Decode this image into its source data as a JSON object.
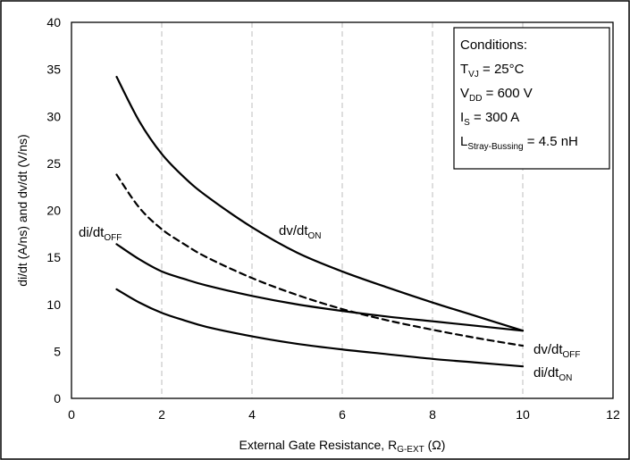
{
  "chart_data": {
    "type": "line",
    "xlabel": {
      "main": "External Gate Resistance, R",
      "sub": "G-EXT",
      "unit": " (Ω)"
    },
    "ylabel": "di/dt (A/ns) and dv/dt (V/ns)",
    "xlim": [
      0,
      12
    ],
    "ylim": [
      0,
      40
    ],
    "xticks": [
      "0",
      "2",
      "4",
      "6",
      "8",
      "10",
      "12"
    ],
    "yticks": [
      "0",
      "5",
      "10",
      "15",
      "20",
      "25",
      "30",
      "35",
      "40"
    ],
    "grid": "vertical-dashed",
    "series": [
      {
        "label": "dv/dt",
        "label_sub": "ON",
        "style": "solid",
        "x": [
          1,
          1.5,
          2,
          2.5,
          3,
          4,
          5,
          6,
          7,
          8,
          9,
          10
        ],
        "y": [
          34.2,
          29.5,
          26.0,
          23.5,
          21.5,
          18.2,
          15.5,
          13.5,
          11.8,
          10.2,
          8.7,
          7.2
        ]
      },
      {
        "label": "dv/dt",
        "label_sub": "OFF",
        "style": "dashed",
        "x": [
          1,
          1.5,
          2,
          2.5,
          3,
          4,
          5,
          6,
          7,
          8,
          9,
          10
        ],
        "y": [
          23.8,
          20.3,
          18.0,
          16.4,
          15.0,
          12.8,
          11.0,
          9.5,
          8.3,
          7.3,
          6.4,
          5.6
        ]
      },
      {
        "label": "di/dt",
        "label_sub": "OFF",
        "style": "solid",
        "x": [
          1,
          1.5,
          2,
          2.5,
          3,
          4,
          5,
          6,
          7,
          8,
          9,
          10
        ],
        "y": [
          16.4,
          14.8,
          13.5,
          12.7,
          12.0,
          10.9,
          10.0,
          9.3,
          8.7,
          8.2,
          7.7,
          7.2
        ]
      },
      {
        "label": "di/dt",
        "label_sub": "ON",
        "style": "solid",
        "x": [
          1,
          1.5,
          2,
          2.5,
          3,
          4,
          5,
          6,
          7,
          8,
          9,
          10
        ],
        "y": [
          11.6,
          10.2,
          9.1,
          8.3,
          7.6,
          6.6,
          5.8,
          5.2,
          4.7,
          4.2,
          3.8,
          3.4
        ]
      }
    ],
    "conditions": {
      "title": "Conditions:",
      "lines": [
        {
          "main": "T",
          "sub": "VJ",
          "rest": " = 25°C"
        },
        {
          "main": "V",
          "sub": "DD",
          "rest": " = 600 V"
        },
        {
          "main": "I",
          "sub": "S",
          "rest": " = 300 A"
        },
        {
          "main": "L",
          "sub": "Stray-Bussing",
          "rest": " = 4.5 nH"
        }
      ]
    }
  }
}
